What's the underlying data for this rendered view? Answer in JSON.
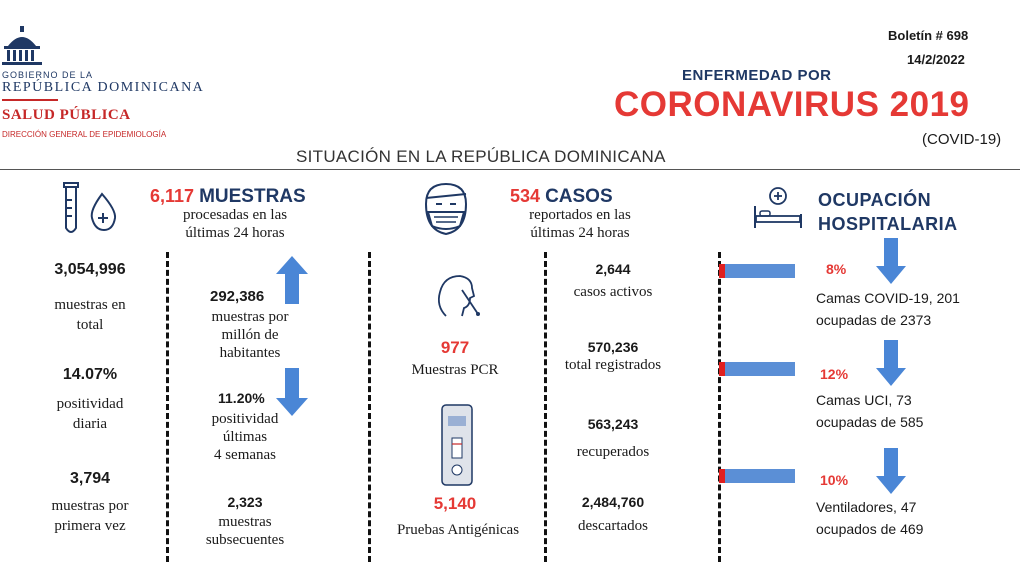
{
  "header": {
    "gov_line1": "GOBIERNO DE LA",
    "gov_line2": "REPÚBLICA DOMINICANA",
    "salud": "SALUD PÚBLICA",
    "direccion": "DIRECCIÓN GENERAL DE EPIDEMIOLOGÍA",
    "boletin": "Boletín # 698",
    "fecha": "14/2/2022",
    "enfermedad": "ENFERMEDAD POR",
    "coronavirus": "CORONAVIRUS 2019",
    "covid": "(COVID-19)",
    "situacion": "SITUACIÓN EN LA REPÚBLICA DOMINICANA"
  },
  "muestras": {
    "count": "6,117",
    "title": "MUESTRAS",
    "subtitle1": "procesadas en las",
    "subtitle2": "últimas 24 horas",
    "total_value": "3,054,996",
    "total_label1": "muestras en",
    "total_label2": "total",
    "pos_diaria_value": "14.07%",
    "pos_diaria_label1": "positividad",
    "pos_diaria_label2": "diaria",
    "primera_value": "3,794",
    "primera_label1": "muestras por",
    "primera_label2": "primera vez",
    "millon_value": "292,386",
    "millon_label1": "muestras por",
    "millon_label2": "millón de",
    "millon_label3": "habitantes",
    "pos4_value": "11.20%",
    "pos4_label1": "positividad",
    "pos4_label2": "últimas",
    "pos4_label3": "4 semanas",
    "subsec_value": "2,323",
    "subsec_label1": "muestras",
    "subsec_label2": "subsecuentes"
  },
  "pruebas": {
    "pcr_value": "977",
    "pcr_label": "Muestras PCR",
    "antig_value": "5,140",
    "antig_label": "Pruebas Antigénicas"
  },
  "casos": {
    "count": "534",
    "title": "CASOS",
    "subtitle1": "reportados en las",
    "subtitle2": "últimas 24 horas",
    "activos_value": "2,644",
    "activos_label": "casos activos",
    "registrados_value": "570,236",
    "registrados_label": "total registrados",
    "recuperados_value": "563,243",
    "recuperados_label": "recuperados",
    "descartados_value": "2,484,760",
    "descartados_label": "descartados"
  },
  "ocupacion": {
    "title1": "OCUPACIÓN",
    "title2": "HOSPITALARIA",
    "covid_pct": "8%",
    "covid_label1": "Camas COVID-19,  201",
    "covid_label2": "ocupadas de 2373",
    "uci_pct": "12%",
    "uci_label1": "Camas UCI,  73",
    "uci_label2": "ocupadas de 585",
    "vent_pct": "10%",
    "vent_label1": "Ventiladores, 47",
    "vent_label2": "ocupados de 469"
  },
  "colors": {
    "red": "#e53935",
    "blue": "#4a86d6",
    "navy": "#1f3864"
  },
  "icons": [
    "capitol-logo-icon",
    "test-tube-icon",
    "masked-face-icon",
    "nasal-swab-icon",
    "antigen-test-icon",
    "hospital-bed-icon"
  ]
}
